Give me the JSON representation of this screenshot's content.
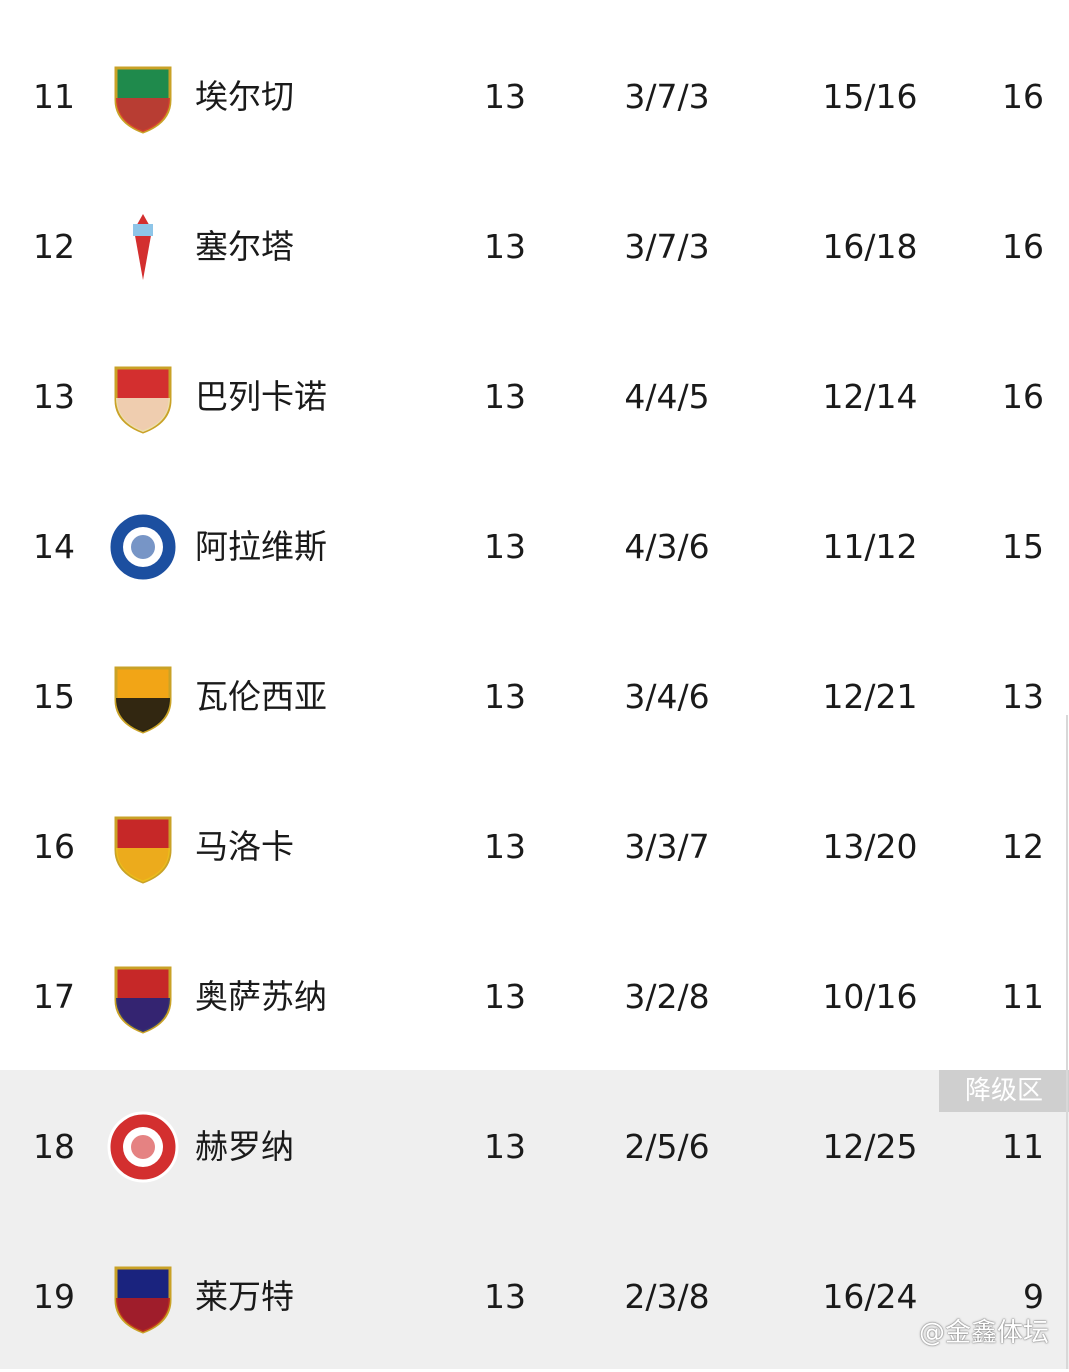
{
  "zone_label": "降级区",
  "watermark": "@金鑫体坛",
  "colors": {
    "relegation_bg": "#efefef",
    "relegation_label_bg": "#cfcfcf"
  },
  "rows": [
    {
      "rank": "11",
      "team": "埃尔切",
      "played": "13",
      "wdl": "3/7/3",
      "goals": "15/16",
      "points": "16",
      "logo": "elche-crest",
      "c1": "#1f8a4c",
      "c2": "#d32f2f"
    },
    {
      "rank": "12",
      "team": "塞尔塔",
      "played": "13",
      "wdl": "3/7/3",
      "goals": "16/18",
      "points": "16",
      "logo": "celta-crest",
      "c1": "#8ec5e8",
      "c2": "#d32f2f"
    },
    {
      "rank": "13",
      "team": "巴列卡诺",
      "played": "13",
      "wdl": "4/4/5",
      "goals": "12/14",
      "points": "16",
      "logo": "rayo-crest",
      "c1": "#d32f2f",
      "c2": "#f3e9c6"
    },
    {
      "rank": "14",
      "team": "阿拉维斯",
      "played": "13",
      "wdl": "4/3/6",
      "goals": "11/12",
      "points": "15",
      "logo": "alaves-crest",
      "c1": "#1c4fa0",
      "c2": "#ffffff"
    },
    {
      "rank": "15",
      "team": "瓦伦西亚",
      "played": "13",
      "wdl": "3/4/6",
      "goals": "12/21",
      "points": "13",
      "logo": "valencia-crest",
      "c1": "#f2a516",
      "c2": "#111111"
    },
    {
      "rank": "16",
      "team": "马洛卡",
      "played": "13",
      "wdl": "3/3/7",
      "goals": "13/20",
      "points": "12",
      "logo": "mallorca-crest",
      "c1": "#c62828",
      "c2": "#f2c21a"
    },
    {
      "rank": "17",
      "team": "奥萨苏纳",
      "played": "13",
      "wdl": "3/2/8",
      "goals": "10/16",
      "points": "11",
      "logo": "osasuna-crest",
      "c1": "#c62828",
      "c2": "#1a237e"
    },
    {
      "rank": "18",
      "team": "赫罗纳",
      "played": "13",
      "wdl": "2/5/6",
      "goals": "12/25",
      "points": "11",
      "logo": "girona-crest",
      "c1": "#d32f2f",
      "c2": "#ffffff"
    },
    {
      "rank": "19",
      "team": "莱万特",
      "played": "13",
      "wdl": "2/3/8",
      "goals": "16/24",
      "points": "9",
      "logo": "levante-crest",
      "c1": "#1a237e",
      "c2": "#b71c1c"
    }
  ]
}
